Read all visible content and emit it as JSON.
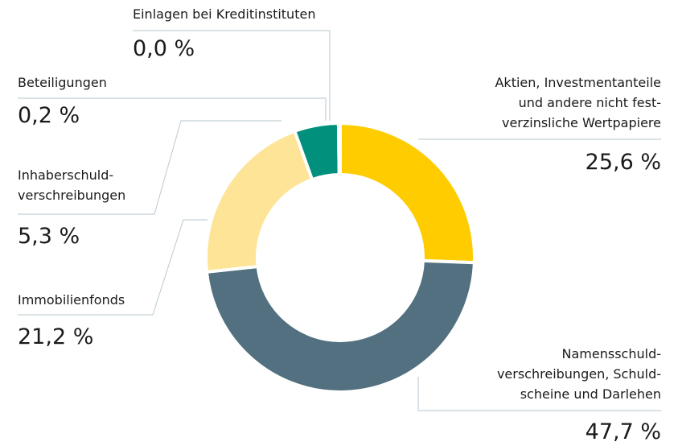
{
  "chart_data": {
    "type": "donut",
    "categories": [
      "Aktien, Investmentanteile\nund andere nicht fest-\nverzinsliche Wertpapiere",
      "Namensschuld-\nverschreibungen, Schuld-\nscheine und Darlehen",
      "Immobilienfonds",
      "Inhaberschuld-\nverschreibungen",
      "Beteiligungen",
      "Einlagen bei Kreditinstituten"
    ],
    "values": [
      25.6,
      47.7,
      21.2,
      5.3,
      0.2,
      0.0
    ],
    "value_labels": [
      "25,6 %",
      "47,7 %",
      "21,2 %",
      "5,3 %",
      "0,2 %",
      "0,0 %"
    ],
    "colors": [
      "#ffcc00",
      "#52707f",
      "#fde497",
      "#00907c",
      "#c3ced6",
      "#e6ecef"
    ]
  }
}
